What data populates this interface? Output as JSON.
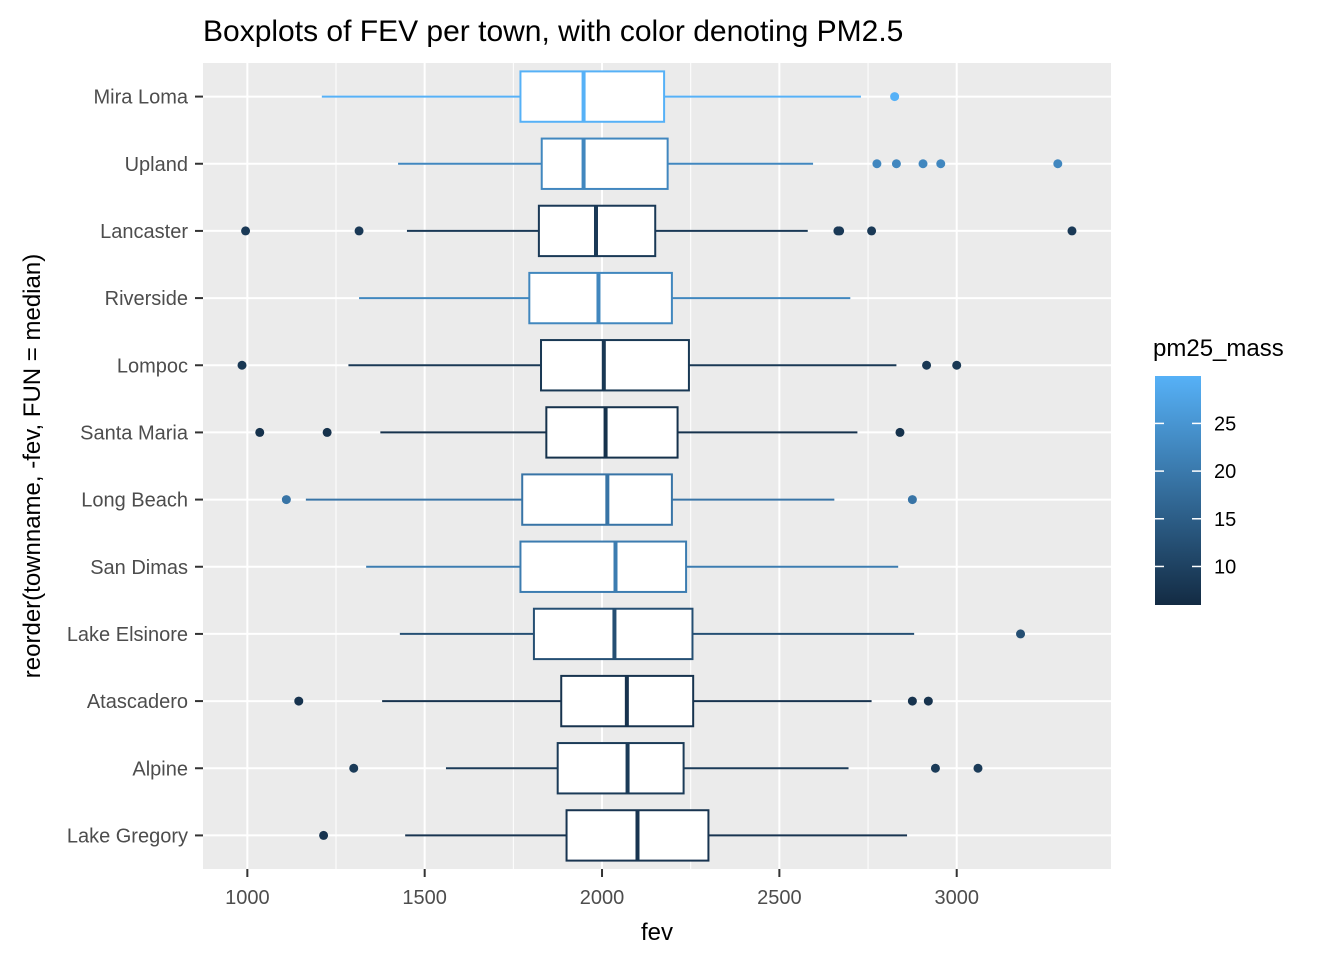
{
  "chart_data": {
    "type": "boxplot",
    "title": "Boxplots of FEV per town, with color denoting PM2.5",
    "xlabel": "fev",
    "ylabel": "reorder(townname, -fev, FUN = median)",
    "xlim": [
      875,
      3435
    ],
    "x_ticks": [
      1000,
      1500,
      2000,
      2500,
      3000
    ],
    "x_tick_labels": [
      "1000",
      "1500",
      "2000",
      "2500",
      "3000"
    ],
    "grid": true,
    "legend": {
      "title": "pm25_mass",
      "placement": "right",
      "range": [
        5.96,
        29.97
      ],
      "low_color": "#132B43",
      "high_color": "#56B1F7",
      "ticks": [
        10,
        15,
        20,
        25
      ],
      "tick_labels": [
        "10",
        "15",
        "20",
        "25"
      ]
    },
    "towns": [
      {
        "name": "Mira Loma",
        "pm25": 29.97,
        "lower_whisker": 1210,
        "q1": 1770,
        "median": 1948,
        "q3": 2175,
        "upper_whisker": 2730,
        "outliers": [
          2825
        ]
      },
      {
        "name": "Upland",
        "pm25": 22.46,
        "lower_whisker": 1425,
        "q1": 1830,
        "median": 1948,
        "q3": 2185,
        "upper_whisker": 2595,
        "outliers": [
          2775,
          2830,
          2905,
          2955,
          3285
        ]
      },
      {
        "name": "Lancaster",
        "pm25": 8.5,
        "lower_whisker": 1450,
        "q1": 1822,
        "median": 1983,
        "q3": 2150,
        "upper_whisker": 2580,
        "outliers": [
          995,
          1315,
          2665,
          2670,
          2760,
          3325
        ]
      },
      {
        "name": "Riverside",
        "pm25": 22.39,
        "lower_whisker": 1315,
        "q1": 1795,
        "median": 1990,
        "q3": 2197,
        "upper_whisker": 2700,
        "outliers": []
      },
      {
        "name": "Lompoc",
        "pm25": 8.22,
        "lower_whisker": 1285,
        "q1": 1828,
        "median": 2005,
        "q3": 2245,
        "upper_whisker": 2830,
        "outliers": [
          985,
          2915,
          3000
        ]
      },
      {
        "name": "Santa Maria",
        "pm25": 7.19,
        "lower_whisker": 1375,
        "q1": 1843,
        "median": 2010,
        "q3": 2213,
        "upper_whisker": 2720,
        "outliers": [
          1035,
          1225,
          2840
        ]
      },
      {
        "name": "Long Beach",
        "pm25": 19.12,
        "lower_whisker": 1165,
        "q1": 1775,
        "median": 2015,
        "q3": 2197,
        "upper_whisker": 2655,
        "outliers": [
          1110,
          2875
        ]
      },
      {
        "name": "San Dimas",
        "pm25": 20.52,
        "lower_whisker": 1335,
        "q1": 1770,
        "median": 2038,
        "q3": 2237,
        "upper_whisker": 2835,
        "outliers": []
      },
      {
        "name": "Lake Elsinore",
        "pm25": 12.35,
        "lower_whisker": 1430,
        "q1": 1808,
        "median": 2035,
        "q3": 2255,
        "upper_whisker": 2880,
        "outliers": [
          3180
        ]
      },
      {
        "name": "Atascadero",
        "pm25": 7.48,
        "lower_whisker": 1380,
        "q1": 1885,
        "median": 2070,
        "q3": 2257,
        "upper_whisker": 2760,
        "outliers": [
          1145,
          2875,
          2920
        ]
      },
      {
        "name": "Alpine",
        "pm25": 8.74,
        "lower_whisker": 1560,
        "q1": 1875,
        "median": 2072,
        "q3": 2230,
        "upper_whisker": 2695,
        "outliers": [
          1300,
          2940,
          3060
        ]
      },
      {
        "name": "Lake Gregory",
        "pm25": 7.66,
        "lower_whisker": 1445,
        "q1": 1900,
        "median": 2100,
        "q3": 2300,
        "upper_whisker": 2860,
        "outliers": [
          1215
        ]
      }
    ]
  }
}
